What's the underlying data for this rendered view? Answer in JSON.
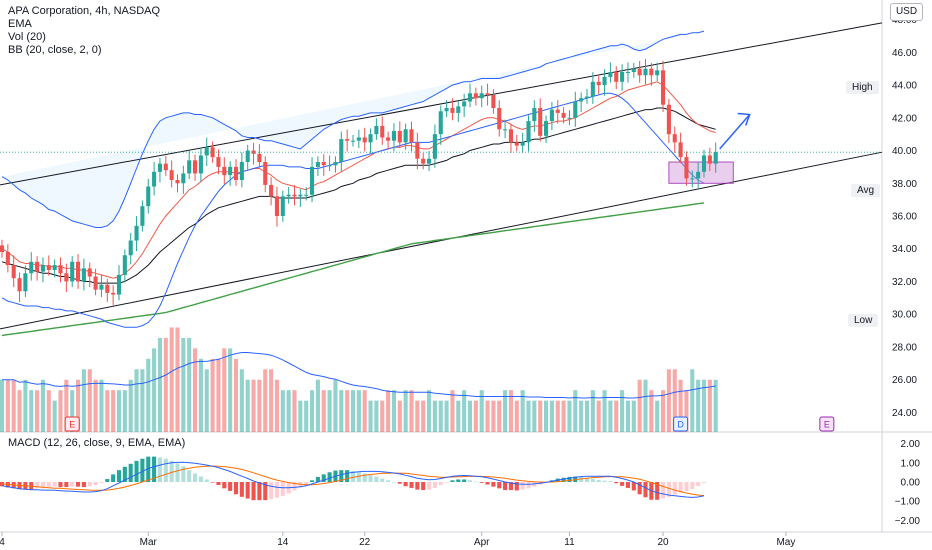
{
  "header": {
    "symbol_line": "APA Corporation, 4h, NASDAQ",
    "indicators": [
      "EMA",
      "Vol (20)",
      "BB (20, close, 2, 0)"
    ],
    "currency": "USD"
  },
  "levels": {
    "high": "High",
    "avg": "Avg",
    "low": "Low"
  },
  "macd_label": "MACD (12, 26, close, 9, EMA, EMA)",
  "events": {
    "earnings": "E",
    "dividend": "D"
  },
  "colors": {
    "up": "#26a69a",
    "down": "#ef5350",
    "bb": "#2962ff",
    "ema_fast": "#f05a4a",
    "ema_slow": "#131722",
    "sma_long": "#43a047",
    "channel": "#131722",
    "macd_line": "#2962ff",
    "signal_line": "#ff6d00",
    "zone": "#e1bee7"
  },
  "chart_data": {
    "type": "candlestick",
    "price_axis": {
      "ticks": [
        "48.00",
        "46.00",
        "44.00",
        "42.00",
        "40.00",
        "38.00",
        "36.00",
        "34.00",
        "32.00",
        "30.00",
        "28.00",
        "26.00",
        "24.00"
      ],
      "range": [
        22.8,
        49.2
      ]
    },
    "macd_axis": {
      "ticks": [
        "2.00",
        "1.00",
        "0.00",
        "−1.00",
        "−2.00"
      ],
      "range": [
        -2.6,
        2.6
      ]
    },
    "time_axis": {
      "ticks": [
        {
          "label": "4",
          "bar": 0
        },
        {
          "label": "Mar",
          "bar": 25
        },
        {
          "label": "14",
          "bar": 48
        },
        {
          "label": "22",
          "bar": 62
        },
        {
          "label": "Apr",
          "bar": 82
        },
        {
          "label": "11",
          "bar": 97
        },
        {
          "label": "20",
          "bar": 113
        },
        {
          "label": "May",
          "bar": 134
        }
      ],
      "total_bars": 150
    },
    "close": [
      33.8,
      33.0,
      32.2,
      31.4,
      32.5,
      33.2,
      32.6,
      33.0,
      32.7,
      33.0,
      32.5,
      32.0,
      33.2,
      32.0,
      32.8,
      32.3,
      31.5,
      31.8,
      31.3,
      31.2,
      32.4,
      33.6,
      34.5,
      35.4,
      36.6,
      37.8,
      38.7,
      39.2,
      38.8,
      38.2,
      38.0,
      38.6,
      39.4,
      38.6,
      39.7,
      40.2,
      39.6,
      39.0,
      38.5,
      39.0,
      38.2,
      39.3,
      40.0,
      39.8,
      39.3,
      37.9,
      37.2,
      36.0,
      37.2,
      37.3,
      37.2,
      37.3,
      37.3,
      39.0,
      39.3,
      39.1,
      39.1,
      39.3,
      40.7,
      40.6,
      40.6,
      40.8,
      40.5,
      41.0,
      41.5,
      40.8,
      40.6,
      41.2,
      40.5,
      41.3,
      40.5,
      39.5,
      39.2,
      39.5,
      41.0,
      42.4,
      42.6,
      42.3,
      42.7,
      43.0,
      43.5,
      43.2,
      43.5,
      43.4,
      42.6,
      41.3,
      41.3,
      40.5,
      40.3,
      40.5,
      41.8,
      42.6,
      40.9,
      41.8,
      42.5,
      42.3,
      42.0,
      42.0,
      43.0,
      43.2,
      43.3,
      44.2,
      44.0,
      44.5,
      44.8,
      44.2,
      44.8,
      44.8,
      45.0,
      44.6,
      45.0,
      44.6,
      44.9,
      42.8,
      41.0,
      40.5,
      39.6,
      38.3,
      38.3,
      38.7,
      39.7,
      39.2,
      39.9
    ],
    "volume": [
      5,
      5,
      5,
      4,
      5,
      4,
      4,
      5,
      4,
      3,
      4,
      5,
      4,
      5,
      6,
      6,
      5,
      5,
      4,
      4,
      4,
      4,
      5,
      6,
      6,
      7,
      8,
      9,
      9,
      10,
      10,
      9,
      9,
      8,
      7,
      6,
      7,
      7,
      8,
      8,
      7,
      6,
      5,
      5,
      5,
      6,
      6,
      5,
      4,
      4,
      4,
      3,
      3,
      4,
      5,
      4,
      4,
      5,
      4,
      4,
      4,
      4,
      4,
      3,
      3,
      3,
      4,
      4,
      3,
      4,
      4,
      3,
      3,
      4,
      3,
      3,
      3,
      4,
      3,
      4,
      3,
      3,
      4,
      3,
      3,
      3,
      4,
      4,
      3,
      4,
      3,
      3,
      3,
      3,
      3,
      3,
      3,
      3,
      4,
      3,
      3,
      4,
      3,
      4,
      3,
      3,
      4,
      3,
      3,
      5,
      5,
      4,
      3,
      4,
      6,
      6,
      5,
      4,
      6,
      5,
      5,
      5,
      5
    ],
    "bb_upper": [
      38.4,
      38.2,
      37.9,
      37.6,
      37.4,
      37.1,
      36.9,
      36.7,
      36.4,
      36.3,
      36.1,
      35.9,
      35.7,
      35.6,
      35.5,
      35.4,
      35.3,
      35.3,
      35.4,
      35.7,
      36.3,
      37.1,
      38.0,
      38.9,
      39.8,
      40.6,
      41.3,
      41.8,
      42.0,
      42.1,
      42.2,
      42.3,
      42.3,
      42.2,
      42.2,
      42.1,
      42.0,
      41.8,
      41.6,
      41.4,
      41.2,
      40.9,
      40.8,
      40.8,
      40.7,
      40.6,
      40.6,
      40.5,
      40.4,
      40.3,
      40.2,
      40.1,
      40.4,
      40.7,
      41.0,
      41.3,
      41.5,
      41.7,
      41.9,
      42.0,
      42.1,
      42.1,
      42.2,
      42.3,
      42.3,
      42.3,
      42.4,
      42.5,
      42.6,
      42.7,
      42.8,
      42.9,
      43.0,
      43.2,
      43.4,
      43.6,
      43.8,
      44.0,
      44.1,
      44.2,
      44.2,
      44.3,
      44.4,
      44.4,
      44.4,
      44.4,
      44.5,
      44.6,
      44.7,
      44.8,
      44.9,
      45.0,
      45.1,
      45.3,
      45.4,
      45.5,
      45.6,
      45.7,
      45.8,
      45.9,
      46.0,
      46.1,
      46.2,
      46.3,
      46.4,
      46.4,
      46.5,
      46.4,
      46.2,
      46.1,
      46.2,
      46.4,
      46.6,
      46.8,
      46.9,
      47.0,
      47.1,
      47.1,
      47.2,
      47.2,
      47.3
    ],
    "bb_lower": [
      31.0,
      30.8,
      30.7,
      30.6,
      30.5,
      30.5,
      30.5,
      30.4,
      30.4,
      30.3,
      30.3,
      30.2,
      30.2,
      30.1,
      30.0,
      29.9,
      29.8,
      29.7,
      29.5,
      29.4,
      29.3,
      29.2,
      29.2,
      29.2,
      29.3,
      29.5,
      29.9,
      30.5,
      31.3,
      32.2,
      33.1,
      33.9,
      34.7,
      35.4,
      36.0,
      36.5,
      37.0,
      37.5,
      37.9,
      38.2,
      38.5,
      38.7,
      38.8,
      38.9,
      39.0,
      39.1,
      39.1,
      39.1,
      39.1,
      39.0,
      39.0,
      39.0,
      38.9,
      38.9,
      38.9,
      39.0,
      39.1,
      39.2,
      39.3,
      39.4,
      39.5,
      39.6,
      39.7,
      39.8,
      39.9,
      40.0,
      40.1,
      40.2,
      40.3,
      40.4,
      40.5,
      40.5,
      40.5,
      40.5,
      40.6,
      40.7,
      40.8,
      40.9,
      41.0,
      41.1,
      41.2,
      41.3,
      41.4,
      41.5,
      41.6,
      41.7,
      41.8,
      41.9,
      42.0,
      42.1,
      42.2,
      42.3,
      42.4,
      42.5,
      42.6,
      42.7,
      42.8,
      42.9,
      43.0,
      43.1,
      43.2,
      43.3,
      43.4,
      43.5,
      43.5,
      43.4,
      43.2,
      42.9,
      42.5,
      42.1,
      41.7,
      41.3,
      40.9,
      40.5,
      40.1,
      39.7,
      39.3,
      38.9,
      38.5,
      38.2,
      38.0
    ],
    "ema_fast": [
      34.0,
      33.8,
      33.5,
      33.2,
      33.1,
      33.1,
      33.0,
      33.0,
      32.9,
      32.9,
      32.9,
      32.8,
      32.8,
      32.7,
      32.7,
      32.6,
      32.5,
      32.4,
      32.3,
      32.2,
      32.3,
      32.5,
      32.8,
      33.2,
      33.7,
      34.3,
      34.9,
      35.5,
      36.0,
      36.4,
      36.8,
      37.2,
      37.6,
      37.8,
      38.1,
      38.4,
      38.6,
      38.7,
      38.7,
      38.7,
      38.6,
      38.7,
      38.8,
      38.9,
      38.9,
      38.7,
      38.5,
      38.2,
      38.0,
      37.9,
      37.8,
      37.7,
      37.6,
      37.8,
      38.0,
      38.1,
      38.3,
      38.5,
      38.7,
      38.9,
      39.1,
      39.3,
      39.5,
      39.7,
      39.9,
      40.0,
      40.1,
      40.2,
      40.2,
      40.3,
      40.3,
      40.2,
      40.1,
      40.1,
      40.3,
      40.5,
      40.7,
      40.9,
      41.1,
      41.3,
      41.5,
      41.7,
      41.9,
      42.0,
      42.0,
      41.9,
      41.8,
      41.6,
      41.4,
      41.3,
      41.4,
      41.5,
      41.5,
      41.6,
      41.7,
      41.8,
      41.8,
      41.9,
      42.0,
      42.2,
      42.4,
      42.6,
      42.8,
      43.0,
      43.2,
      43.3,
      43.5,
      43.7,
      43.8,
      43.9,
      44.0,
      44.1,
      44.2,
      44.0,
      43.6,
      43.2,
      42.8,
      42.3,
      41.9,
      41.6,
      41.4,
      41.2,
      41.1
    ],
    "ema_slow": [
      33.2,
      33.1,
      33.0,
      32.9,
      32.8,
      32.7,
      32.6,
      32.5,
      32.5,
      32.4,
      32.3,
      32.3,
      32.2,
      32.1,
      32.0,
      32.0,
      31.9,
      31.9,
      31.9,
      31.9,
      31.9,
      32.0,
      32.2,
      32.4,
      32.7,
      33.0,
      33.4,
      33.8,
      34.1,
      34.4,
      34.7,
      35.0,
      35.3,
      35.5,
      35.8,
      36.1,
      36.3,
      36.5,
      36.6,
      36.7,
      36.8,
      36.9,
      37.0,
      37.1,
      37.2,
      37.2,
      37.2,
      37.1,
      37.1,
      37.1,
      37.1,
      37.1,
      37.1,
      37.2,
      37.3,
      37.4,
      37.5,
      37.6,
      37.8,
      37.9,
      38.0,
      38.2,
      38.3,
      38.4,
      38.6,
      38.7,
      38.8,
      38.9,
      39.0,
      39.1,
      39.1,
      39.1,
      39.1,
      39.1,
      39.2,
      39.3,
      39.4,
      39.6,
      39.7,
      39.8,
      40.0,
      40.1,
      40.2,
      40.3,
      40.4,
      40.4,
      40.5,
      40.5,
      40.5,
      40.5,
      40.6,
      40.7,
      40.7,
      40.8,
      40.9,
      41.0,
      41.1,
      41.2,
      41.3,
      41.4,
      41.5,
      41.6,
      41.7,
      41.8,
      41.9,
      42.0,
      42.1,
      42.2,
      42.3,
      42.4,
      42.5,
      42.5,
      42.6,
      42.6,
      42.5,
      42.4,
      42.2,
      42.0,
      41.8,
      41.6,
      41.5,
      41.4,
      41.3
    ],
    "sma_long": [
      28.7,
      28.75,
      28.8,
      28.85,
      28.9,
      28.95,
      29.0,
      29.05,
      29.1,
      29.15,
      29.2,
      29.25,
      29.3,
      29.35,
      29.4,
      29.45,
      29.5,
      29.55,
      29.6,
      29.65,
      29.7,
      29.75,
      29.8,
      29.85,
      29.9,
      29.95,
      30.0,
      30.05,
      30.1,
      30.2,
      30.3,
      30.4,
      30.5,
      30.6,
      30.7,
      30.8,
      30.9,
      31.0,
      31.1,
      31.2,
      31.3,
      31.4,
      31.5,
      31.6,
      31.7,
      31.8,
      31.9,
      32.0,
      32.1,
      32.2,
      32.3,
      32.4,
      32.5,
      32.6,
      32.7,
      32.8,
      32.9,
      33.0,
      33.1,
      33.2,
      33.3,
      33.4,
      33.5,
      33.6,
      33.7,
      33.8,
      33.9,
      34.0,
      34.1,
      34.2,
      34.3,
      34.35,
      34.4,
      34.45,
      34.5,
      34.55,
      34.6,
      34.65,
      34.7,
      34.75,
      34.8,
      34.85,
      34.9,
      34.95,
      35.0,
      35.05,
      35.1,
      35.15,
      35.2,
      35.25,
      35.3,
      35.35,
      35.4,
      35.45,
      35.5,
      35.55,
      35.6,
      35.65,
      35.7,
      35.75,
      35.8,
      35.85,
      35.9,
      35.95,
      36.0,
      36.05,
      36.1,
      36.15,
      36.2,
      36.25,
      36.3,
      36.35,
      36.4,
      36.45,
      36.5,
      36.55,
      36.6,
      36.65,
      36.7,
      36.75,
      36.8
    ],
    "macd": [
      -0.2,
      -0.25,
      -0.3,
      -0.35,
      -0.38,
      -0.4,
      -0.4,
      -0.42,
      -0.42,
      -0.43,
      -0.45,
      -0.47,
      -0.48,
      -0.5,
      -0.52,
      -0.52,
      -0.5,
      -0.45,
      -0.35,
      -0.2,
      -0.05,
      0.1,
      0.25,
      0.4,
      0.55,
      0.7,
      0.8,
      0.88,
      0.95,
      1.0,
      1.02,
      1.03,
      1.0,
      0.97,
      0.93,
      0.88,
      0.82,
      0.75,
      0.65,
      0.55,
      0.42,
      0.3,
      0.18,
      0.05,
      -0.05,
      -0.15,
      -0.22,
      -0.27,
      -0.3,
      -0.3,
      -0.28,
      -0.25,
      -0.2,
      -0.1,
      0.0,
      0.1,
      0.2,
      0.3,
      0.38,
      0.45,
      0.5,
      0.53,
      0.55,
      0.55,
      0.55,
      0.53,
      0.5,
      0.47,
      0.42,
      0.35,
      0.28,
      0.2,
      0.15,
      0.12,
      0.13,
      0.18,
      0.24,
      0.3,
      0.33,
      0.34,
      0.33,
      0.3,
      0.27,
      0.22,
      0.15,
      0.08,
      0.0,
      -0.05,
      -0.1,
      -0.12,
      -0.12,
      -0.1,
      -0.06,
      -0.02,
      0.04,
      0.1,
      0.15,
      0.2,
      0.25,
      0.28,
      0.3,
      0.3,
      0.3,
      0.3,
      0.3,
      0.25,
      0.18,
      0.1,
      0.0,
      -0.15,
      -0.3,
      -0.45,
      -0.55,
      -0.62,
      -0.68,
      -0.72,
      -0.75,
      -0.78,
      -0.8,
      -0.78,
      -0.72
    ],
    "signal": [
      -0.1,
      -0.12,
      -0.15,
      -0.18,
      -0.2,
      -0.22,
      -0.25,
      -0.27,
      -0.3,
      -0.32,
      -0.33,
      -0.35,
      -0.37,
      -0.39,
      -0.4,
      -0.42,
      -0.43,
      -0.43,
      -0.42,
      -0.38,
      -0.33,
      -0.26,
      -0.18,
      -0.1,
      0.0,
      0.1,
      0.2,
      0.3,
      0.4,
      0.5,
      0.58,
      0.66,
      0.72,
      0.77,
      0.8,
      0.82,
      0.83,
      0.82,
      0.8,
      0.76,
      0.71,
      0.65,
      0.57,
      0.48,
      0.38,
      0.28,
      0.18,
      0.1,
      0.03,
      -0.03,
      -0.08,
      -0.12,
      -0.14,
      -0.14,
      -0.12,
      -0.08,
      -0.03,
      0.03,
      0.1,
      0.17,
      0.24,
      0.3,
      0.35,
      0.39,
      0.42,
      0.45,
      0.46,
      0.47,
      0.46,
      0.45,
      0.42,
      0.38,
      0.34,
      0.3,
      0.27,
      0.25,
      0.25,
      0.26,
      0.27,
      0.28,
      0.29,
      0.29,
      0.29,
      0.28,
      0.26,
      0.23,
      0.19,
      0.14,
      0.1,
      0.06,
      0.03,
      0.01,
      0.0,
      -0.01,
      0.0,
      0.02,
      0.05,
      0.08,
      0.12,
      0.16,
      0.2,
      0.23,
      0.25,
      0.27,
      0.28,
      0.28,
      0.27,
      0.24,
      0.2,
      0.14,
      0.06,
      -0.03,
      -0.13,
      -0.23,
      -0.33,
      -0.42,
      -0.5,
      -0.57,
      -0.63,
      -0.68,
      -0.7
    ]
  }
}
